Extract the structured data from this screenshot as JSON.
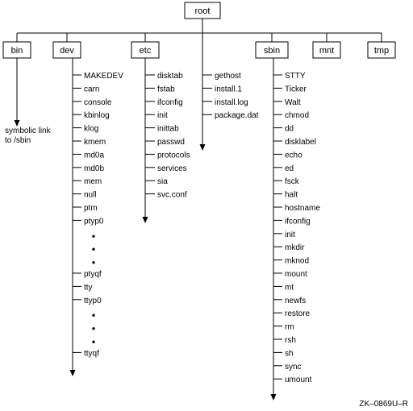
{
  "root": "root",
  "directories": [
    {
      "name": "bin",
      "note": [
        "symbolic link",
        "to /sbin"
      ],
      "items": []
    },
    {
      "name": "dev",
      "items": [
        "MAKEDEV",
        "carn",
        "console",
        "kbinlog",
        "klog",
        "kmem",
        "md0a",
        "md0b",
        "mem",
        "null",
        "ptm",
        "ptyp0",
        "•",
        "•",
        "•",
        "ptyqf",
        "tty",
        "ttyp0",
        "•",
        "•",
        "•",
        "ttyqf"
      ]
    },
    {
      "name": "etc",
      "items": [
        "disktab",
        "fstab",
        "ifconfig",
        "init",
        "inittab",
        "passwd",
        "protocols",
        "services",
        "sia",
        "svc.conf"
      ]
    },
    {
      "name": "",
      "items": [
        "gethost",
        "install.1",
        "install.log",
        "package.dat"
      ]
    },
    {
      "name": "sbin",
      "items": [
        "STTY",
        "Ticker",
        "Walt",
        "chmod",
        "dd",
        "disklabel",
        "echo",
        "ed",
        "fsck",
        "halt",
        "hostname",
        "ifconfig",
        "init",
        "mkdir",
        "mknod",
        "mount",
        "mt",
        "newfs",
        "restore",
        "rm",
        "rsh",
        "sh",
        "sync",
        "umount"
      ]
    },
    {
      "name": "mnt",
      "items": []
    },
    {
      "name": "tmp",
      "items": []
    }
  ],
  "figure_id": "ZK–0869U–R"
}
